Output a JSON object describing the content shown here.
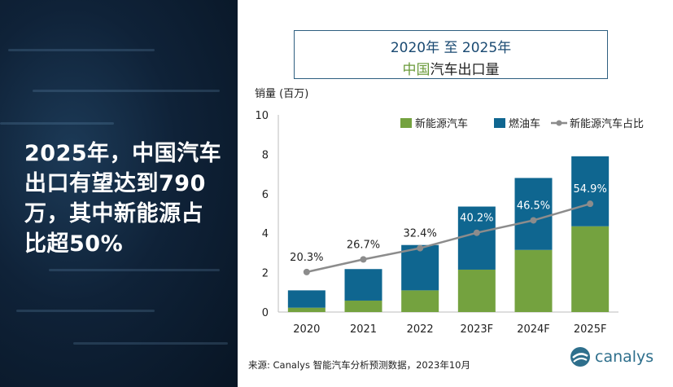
{
  "headline": "2025年，中国汽车出口有望达到790万，其中新能源占比超50%",
  "title": {
    "line1": "2020年 至 2025年",
    "line2_highlight": "中国",
    "line2_rest": "汽车出口量"
  },
  "source": "来源: Canalys 智能汽车分析预测数据，2023年10月",
  "logo": {
    "text": "canalys",
    "icon": "canalys-logo-icon"
  },
  "colors": {
    "nev": "#74a23f",
    "ice": "#0f6690",
    "share_line": "#8c8c8c",
    "axis_text": "#222222"
  },
  "chart_data": {
    "type": "bar",
    "stacked": true,
    "ylabel": "销量 (百万)",
    "ylim": [
      0,
      10
    ],
    "yticks": [
      0,
      2,
      4,
      6,
      8,
      10
    ],
    "grid": false,
    "legend_position": "top-right",
    "categories": [
      "2020",
      "2021",
      "2022",
      "2023F",
      "2024F",
      "2025F"
    ],
    "series": [
      {
        "name": "新能源汽车",
        "values": [
          0.22,
          0.58,
          1.1,
          2.15,
          3.15,
          4.35
        ]
      },
      {
        "name": "燃油车",
        "values": [
          0.88,
          1.6,
          2.3,
          3.2,
          3.65,
          3.55
        ]
      }
    ],
    "line_series": {
      "name": "新能源汽车占比",
      "values": [
        20.3,
        26.7,
        32.4,
        40.2,
        46.5,
        54.9
      ],
      "labels": [
        "20.3%",
        "26.7%",
        "32.4%",
        "40.2%",
        "46.5%",
        "54.9%"
      ],
      "unit": "%"
    }
  }
}
